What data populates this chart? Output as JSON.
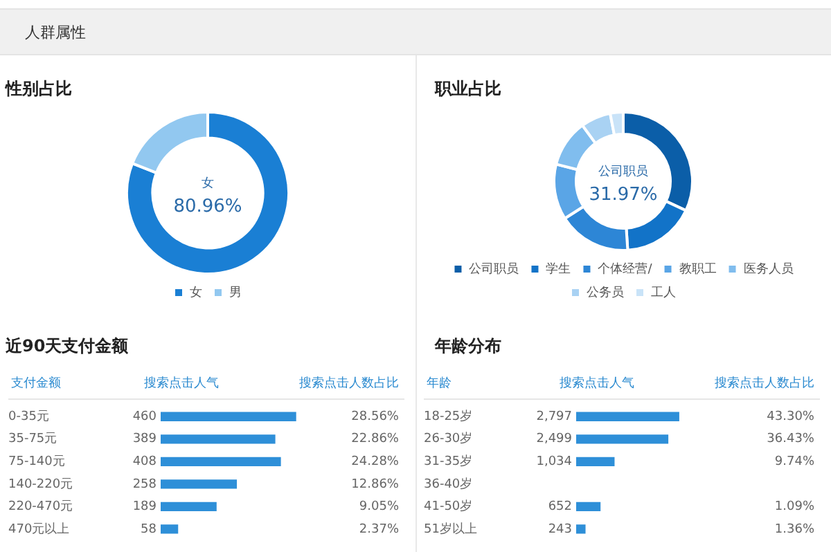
{
  "chart_data": [
    {
      "type": "donut",
      "title": "性别占比",
      "annotations": [
        "人群属性"
      ],
      "categories": [
        "女",
        "男"
      ],
      "values": [
        80.96,
        19.04
      ],
      "colors": [
        "#1a7fd4",
        "#92c8f0"
      ],
      "value_labels": [
        "80.96%",
        null
      ],
      "legend": "bottom"
    },
    {
      "type": "donut",
      "title": "职业占比",
      "categories": [
        "公司职员",
        "学生",
        "个体经营/",
        "教职工",
        "医务人员",
        "公务员",
        "工人"
      ],
      "values": [
        31.97,
        17,
        17,
        13,
        11,
        7,
        3.03
      ],
      "colors": [
        "#0b5ea8",
        "#1273c8",
        "#2d86d6",
        "#5aa5e6",
        "#80bdee",
        "#a9d2f3",
        "#c9e3f8"
      ],
      "value_labels": [
        "31.97%",
        null,
        null,
        null,
        null,
        null,
        null
      ],
      "legend": "bottom"
    },
    {
      "type": "bar",
      "orientation": "horizontal",
      "title": "近90天支付金额",
      "ylabel": "支付金额",
      "xlabel": "搜索点击人气",
      "categories": [
        "0-35元",
        "35-75元",
        "75-140元",
        "140-220元",
        "220-470元",
        "470元以上"
      ],
      "values": [
        460,
        389,
        408,
        258,
        189,
        58
      ],
      "color": "#2e8fd8",
      "value_labels": [
        "460",
        "389",
        "408",
        "258",
        "189",
        "58"
      ],
      "tick_labels": "y",
      "legend": false,
      "grid": false,
      "annotations": [
        "搜索点击人数占比",
        "28.56%",
        "22.86%",
        "24.28%",
        "12.86%",
        "9.05%",
        "2.37%"
      ]
    },
    {
      "type": "bar",
      "orientation": "horizontal",
      "title": "年龄分布",
      "ylabel": "年龄",
      "xlabel": "搜索点击人气",
      "categories": [
        "18-25岁",
        "26-30岁",
        "31-35岁",
        "36-40岁",
        "41-50岁",
        "51岁以上"
      ],
      "values": [
        2797,
        2499,
        1034,
        null,
        652,
        243
      ],
      "color": "#2e8fd8",
      "value_labels": [
        "2,797",
        "2,499",
        "1,034",
        null,
        "652",
        "243"
      ],
      "tick_labels": "y",
      "legend": false,
      "grid": false,
      "annotations": [
        "搜索点击人数占比",
        "43.30%",
        "36.43%",
        "9.74%",
        "1.09%",
        "1.36%"
      ]
    }
  ]
}
